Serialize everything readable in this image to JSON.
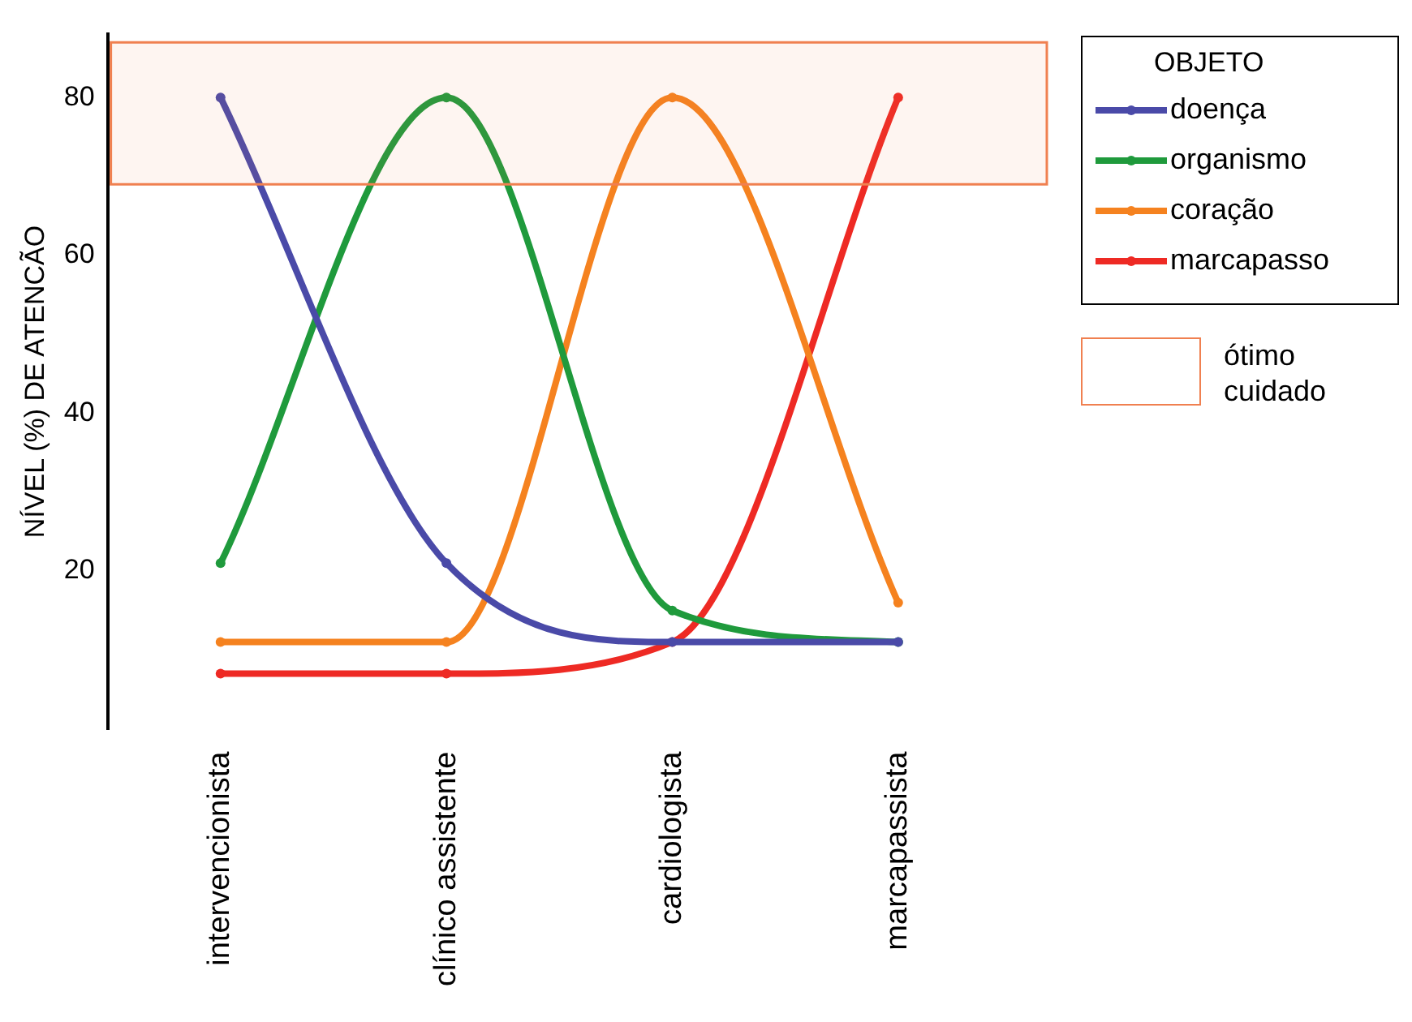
{
  "chart_data": {
    "type": "line",
    "ylabel": "NÍVEL (%) DE ATENCÃO",
    "legend_title": "OBJETO",
    "legend": "right",
    "marker": "circle",
    "grid": false,
    "categories": [
      "intervencionista",
      "clínico assistente",
      "cardiologista",
      "marcapassista"
    ],
    "ylim": [
      0,
      88
    ],
    "yticks": [
      20,
      40,
      60,
      80
    ],
    "series": [
      {
        "name": "doença",
        "color": "#4a4aa8",
        "values": [
          80,
          21,
          11,
          11
        ]
      },
      {
        "name": "organismo",
        "color": "#1f9a3c",
        "values": [
          21,
          80,
          15,
          11
        ]
      },
      {
        "name": "coração",
        "color": "#f5821f",
        "values": [
          11,
          11,
          80,
          16
        ]
      },
      {
        "name": "marcapasso",
        "color": "#ee2a24",
        "values": [
          7,
          7,
          11,
          80
        ]
      }
    ],
    "bands": [
      {
        "axis": "y",
        "from": 69,
        "to": 87,
        "label": "ótimo\ncuidado",
        "color": "#f08050"
      }
    ]
  }
}
